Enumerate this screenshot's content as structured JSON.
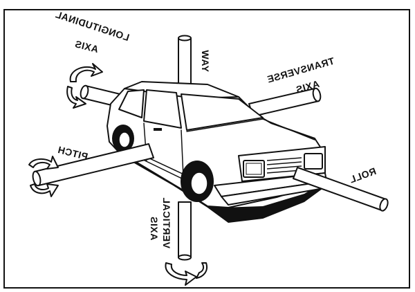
{
  "labels": {
    "longitudinal": "LONGITUDINAL",
    "longitudinal_axis": "AXIS",
    "yaw": "YAW",
    "transverse": "TRANSVERSE",
    "transverse_axis": "AXIS",
    "pitch": "PITCH",
    "roll": "ROLL",
    "vertical": "VERTICAL",
    "vertical_axis": "AXIS"
  }
}
